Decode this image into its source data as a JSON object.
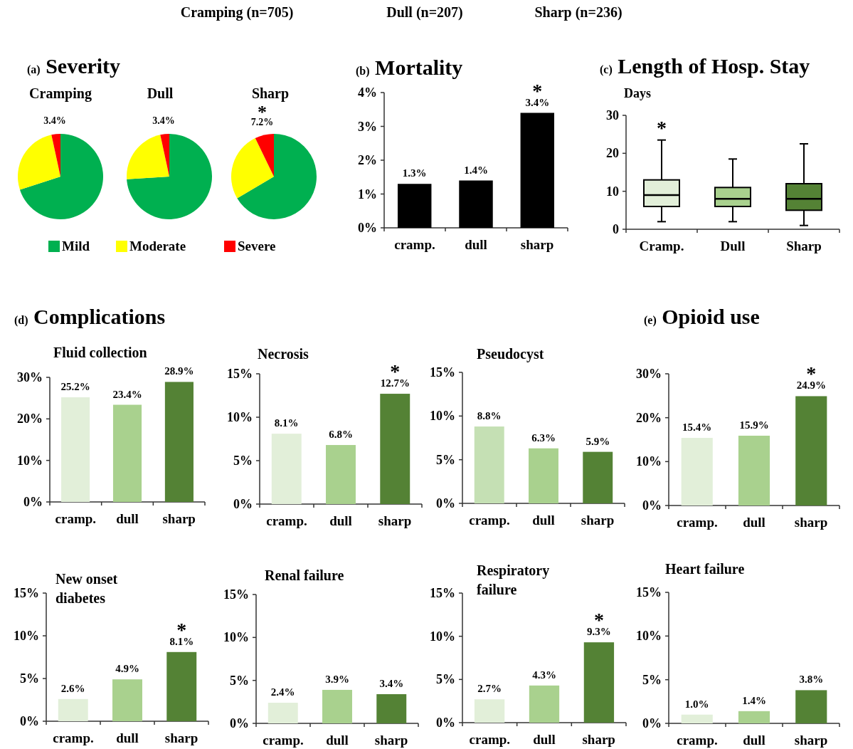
{
  "chart_data": [
    {
      "type": "pie",
      "title": "(a) Severity",
      "subtitle": "Cramping",
      "categories": [
        "Mild",
        "Moderate",
        "Severe"
      ],
      "values": [
        70.0,
        26.6,
        3.4
      ],
      "colors": [
        "#00b050",
        "#ffff00",
        "#ff0000"
      ],
      "value_labels": [
        null,
        null,
        "3.4%"
      ],
      "legend": "bottom",
      "annotations": [
        "Cramping (n=705)",
        "Dull (n=207)",
        "Sharp (n=236)"
      ]
    },
    {
      "type": "pie",
      "subtitle": "Dull",
      "categories": [
        null,
        null,
        null
      ],
      "values": [
        74.0,
        22.6,
        3.4
      ],
      "colors": [
        "#00b050",
        "#ffff00",
        "#ff0000"
      ],
      "value_labels": [
        null,
        null,
        "3.4%"
      ]
    },
    {
      "type": "pie",
      "subtitle": "Sharp",
      "categories": [
        null,
        null,
        null
      ],
      "values": [
        66.5,
        26.3,
        7.2
      ],
      "colors": [
        "#00b050",
        "#ffff00",
        "#ff0000"
      ],
      "value_labels": [
        null,
        null,
        "7.2%"
      ],
      "annotations": [
        {
          "text": "*"
        }
      ]
    },
    {
      "type": "bar",
      "title": "(b) Mortality",
      "categories": [
        "cramp.",
        "dull",
        "sharp"
      ],
      "values": [
        1.3,
        1.4,
        3.4
      ],
      "color": "#000000",
      "value_labels": [
        "1.3%",
        "1.4%",
        "3.4%"
      ],
      "ylim": [
        0,
        4
      ],
      "yticks": [
        {
          "value": 0,
          "label": "0%"
        },
        {
          "value": 1,
          "label": "1%"
        },
        {
          "value": 2,
          "label": "2%"
        },
        {
          "value": 3,
          "label": "3%"
        },
        {
          "value": 4,
          "label": "4%"
        }
      ],
      "annotations": [
        {
          "text": "*",
          "x": "sharp",
          "y": 3.4
        }
      ]
    },
    {
      "type": "box",
      "title": "(c) Length of Hosp. Stay",
      "ylabel": "Days",
      "categories": [
        "Cramp.",
        "Dull",
        "Sharp"
      ],
      "colors": [
        "#e2efd9",
        "#a9d18e",
        "#548235"
      ],
      "boxes": [
        {
          "low": 2,
          "q1": 6,
          "median": 9,
          "q3": 13,
          "high": 23.5
        },
        {
          "low": 2,
          "q1": 6,
          "median": 8,
          "q3": 11,
          "high": 18.5
        },
        {
          "low": 1,
          "q1": 5,
          "median": 8,
          "q3": 12,
          "high": 22.5
        }
      ],
      "ylim": [
        0,
        30
      ],
      "yticks": [
        0,
        10,
        20,
        30
      ],
      "annotations": [
        {
          "text": "*",
          "x": "Cramp.",
          "y": 23.5
        }
      ]
    },
    {
      "type": "bar",
      "title": "(d) Complications",
      "subtitle": "Fluid collection",
      "categories": [
        "cramp.",
        "dull",
        "sharp"
      ],
      "values": [
        25.2,
        23.4,
        28.9
      ],
      "colors": [
        "#e2efd9",
        "#a9d18e",
        "#548235"
      ],
      "value_labels": [
        "25.2%",
        "23.4%",
        "28.9%"
      ],
      "ylim": [
        0,
        30
      ],
      "yticks": [
        {
          "value": 0,
          "label": "0%"
        },
        {
          "value": 10,
          "label": "10%"
        },
        {
          "value": 20,
          "label": "20%"
        },
        {
          "value": 30,
          "label": "30%"
        }
      ]
    },
    {
      "type": "bar",
      "subtitle": "Necrosis",
      "categories": [
        "cramp.",
        "dull",
        "sharp"
      ],
      "values": [
        8.1,
        6.8,
        12.7
      ],
      "colors": [
        "#e2efd9",
        "#a9d18e",
        "#548235"
      ],
      "value_labels": [
        "8.1%",
        "6.8%",
        "12.7%"
      ],
      "ylim": [
        0,
        15
      ],
      "yticks": [
        {
          "value": 0,
          "label": "0%"
        },
        {
          "value": 5,
          "label": "5%"
        },
        {
          "value": 10,
          "label": "10%"
        },
        {
          "value": 15,
          "label": "15%"
        }
      ],
      "annotations": [
        {
          "text": "*",
          "x": "sharp",
          "y": 12.7
        }
      ]
    },
    {
      "type": "bar",
      "subtitle": "Pseudocyst",
      "categories": [
        "cramp.",
        "dull",
        "sharp"
      ],
      "values": [
        8.8,
        6.3,
        5.9
      ],
      "colors": [
        "#c5e0b4",
        "#a9d18e",
        "#548235"
      ],
      "value_labels": [
        "8.8%",
        "6.3%",
        "5.9%"
      ],
      "ylim": [
        0,
        15
      ],
      "yticks": [
        {
          "value": 0,
          "label": "0%"
        },
        {
          "value": 5,
          "label": "5%"
        },
        {
          "value": 10,
          "label": "10%"
        },
        {
          "value": 15,
          "label": "15%"
        }
      ]
    },
    {
      "type": "bar",
      "title": "(e) Opioid use",
      "categories": [
        "cramp.",
        "dull",
        "sharp"
      ],
      "values": [
        15.4,
        15.9,
        24.9
      ],
      "colors": [
        "#e2efd9",
        "#a9d18e",
        "#548235"
      ],
      "value_labels": [
        "15.4%",
        "15.9%",
        "24.9%"
      ],
      "ylim": [
        0,
        30
      ],
      "yticks": [
        {
          "value": 0,
          "label": "0%"
        },
        {
          "value": 10,
          "label": "10%"
        },
        {
          "value": 20,
          "label": "20%"
        },
        {
          "value": 30,
          "label": "30%"
        }
      ],
      "annotations": [
        {
          "text": "*",
          "x": "sharp",
          "y": 24.9
        }
      ]
    },
    {
      "type": "bar",
      "subtitle": "New onset diabetes",
      "categories": [
        "cramp.",
        "dull",
        "sharp"
      ],
      "values": [
        2.6,
        4.9,
        8.1
      ],
      "colors": [
        "#e2efd9",
        "#a9d18e",
        "#548235"
      ],
      "value_labels": [
        "2.6%",
        "4.9%",
        "8.1%"
      ],
      "ylim": [
        0,
        15
      ],
      "yticks": [
        {
          "value": 0,
          "label": "0%"
        },
        {
          "value": 5,
          "label": "5%"
        },
        {
          "value": 10,
          "label": "10%"
        },
        {
          "value": 15,
          "label": "15%"
        }
      ],
      "annotations": [
        {
          "text": "*",
          "x": "sharp",
          "y": 8.1
        }
      ]
    },
    {
      "type": "bar",
      "subtitle": "Renal failure",
      "categories": [
        "cramp.",
        "dull",
        "sharp"
      ],
      "values": [
        2.4,
        3.9,
        3.4
      ],
      "colors": [
        "#e2efd9",
        "#a9d18e",
        "#548235"
      ],
      "value_labels": [
        "2.4%",
        "3.9%",
        "3.4%"
      ],
      "ylim": [
        0,
        15
      ],
      "yticks": [
        {
          "value": 0,
          "label": "0%"
        },
        {
          "value": 5,
          "label": "5%"
        },
        {
          "value": 10,
          "label": "10%"
        },
        {
          "value": 15,
          "label": "15%"
        }
      ]
    },
    {
      "type": "bar",
      "subtitle": "Respiratory failure",
      "categories": [
        "cramp.",
        "dull",
        "sharp"
      ],
      "values": [
        2.7,
        4.3,
        9.3
      ],
      "colors": [
        "#e2efd9",
        "#a9d18e",
        "#548235"
      ],
      "value_labels": [
        "2.7%",
        "4.3%",
        "9.3%"
      ],
      "ylim": [
        0,
        15
      ],
      "yticks": [
        {
          "value": 0,
          "label": "0%"
        },
        {
          "value": 5,
          "label": "5%"
        },
        {
          "value": 10,
          "label": "10%"
        },
        {
          "value": 15,
          "label": "15%"
        }
      ],
      "annotations": [
        {
          "text": "*",
          "x": "sharp",
          "y": 9.3
        }
      ]
    },
    {
      "type": "bar",
      "subtitle": "Heart failure",
      "categories": [
        "cramp.",
        "dull",
        "sharp"
      ],
      "values": [
        1.0,
        1.4,
        3.8
      ],
      "colors": [
        "#e2efd9",
        "#a9d18e",
        "#548235"
      ],
      "value_labels": [
        "1.0%",
        "1.4%",
        "3.8%"
      ],
      "ylim": [
        0,
        15
      ],
      "yticks": [
        {
          "value": 0,
          "label": "0%"
        },
        {
          "value": 5,
          "label": "5%"
        },
        {
          "value": 10,
          "label": "10%"
        },
        {
          "value": 15,
          "label": "15%"
        }
      ]
    }
  ]
}
